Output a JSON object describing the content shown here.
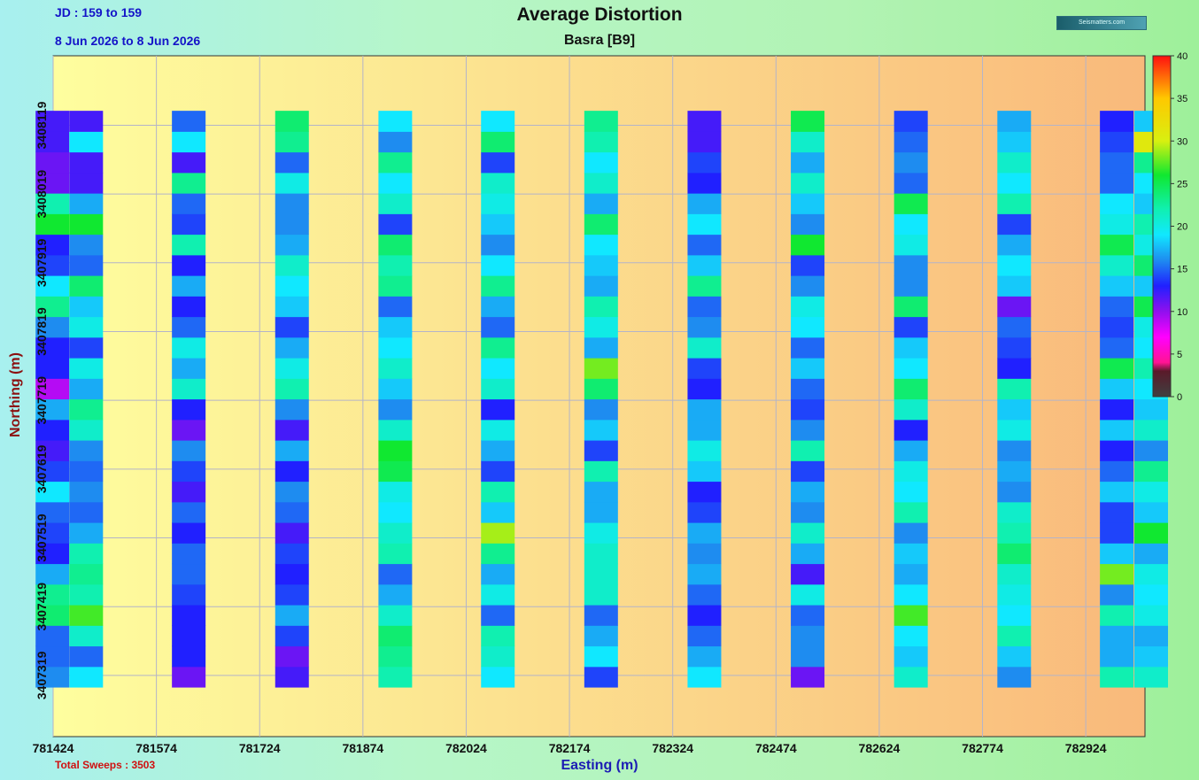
{
  "header": {
    "title": "Average Distortion",
    "subtitle": "Basra  [B9]",
    "jd": "JD : 159 to 159",
    "date_range": "8 Jun 2026 to 8 Jun 2026",
    "logo_text": "Seismatters.com"
  },
  "footer": {
    "total_sweeps": "Total Sweeps : 3503"
  },
  "chart_data": {
    "type": "heatmap",
    "title": "Average Distortion",
    "subtitle": "Basra  [B9]",
    "xlabel": "Easting (m)",
    "ylabel": "Northing (m)",
    "xlim": [
      781424,
      783010
    ],
    "ylim": [
      3407230,
      3408220
    ],
    "x_ticks": [
      781424,
      781574,
      781724,
      781874,
      782024,
      782174,
      782324,
      782474,
      782624,
      782774,
      782924
    ],
    "y_ticks": [
      3407319,
      3407419,
      3407519,
      3407619,
      3407719,
      3407819,
      3407919,
      3408019,
      3408119
    ],
    "grid": true,
    "colorbar": {
      "min": 0,
      "max": 40,
      "ticks": [
        0,
        5,
        10,
        15,
        20,
        25,
        30,
        35,
        40
      ],
      "label": ""
    },
    "swath": {
      "y_start": 3407302,
      "y_end": 3408140
    },
    "lines": [
      {
        "easting": 781423,
        "values": [
          16,
          15,
          15,
          24,
          23,
          17,
          13,
          14,
          15,
          19,
          14,
          12,
          13,
          17,
          9,
          13,
          13,
          16,
          23,
          19,
          14,
          13,
          26,
          22,
          11,
          11,
          12,
          12
        ]
      },
      {
        "easting": 781472,
        "values": [
          19,
          15,
          21,
          27,
          22,
          23,
          22,
          17,
          15,
          16,
          15,
          16,
          21,
          23,
          17,
          20,
          14,
          20,
          18,
          24,
          15,
          16,
          26,
          17,
          12,
          12,
          19,
          12
        ]
      },
      {
        "easting": 781621,
        "values": [
          11,
          13,
          13,
          13,
          14,
          15,
          15,
          13,
          15,
          12,
          14,
          16,
          11,
          13,
          21,
          17,
          20,
          15,
          13,
          17,
          13,
          22,
          14,
          15,
          23,
          12,
          19,
          15
        ]
      },
      {
        "easting": 781771,
        "values": [
          12,
          11,
          14,
          17,
          14,
          13,
          14,
          12,
          15,
          16,
          13,
          17,
          12,
          16,
          22,
          20,
          17,
          14,
          18,
          19,
          21,
          17,
          16,
          16,
          20,
          15,
          23,
          24
        ]
      },
      {
        "easting": 781921,
        "values": [
          22,
          23,
          24,
          21,
          17,
          15,
          22,
          21,
          19,
          20,
          25,
          26,
          21,
          16,
          18,
          21,
          19,
          18,
          15,
          23,
          22,
          24,
          14,
          21,
          19,
          23,
          16,
          19
        ]
      },
      {
        "easting": 782070,
        "values": [
          19,
          21,
          22,
          15,
          20,
          17,
          23,
          29,
          18,
          22,
          14,
          17,
          20,
          13,
          21,
          19,
          23,
          15,
          17,
          23,
          19,
          16,
          18,
          20,
          21,
          14,
          24,
          19
        ]
      },
      {
        "easting": 782220,
        "values": [
          14,
          19,
          17,
          15,
          21,
          21,
          21,
          20,
          17,
          17,
          22,
          14,
          18,
          16,
          24,
          28,
          17,
          20,
          22,
          17,
          18,
          19,
          24,
          17,
          21,
          19,
          22,
          23
        ]
      },
      {
        "easting": 782370,
        "values": [
          19,
          17,
          15,
          13,
          15,
          17,
          16,
          17,
          14,
          13,
          18,
          20,
          17,
          17,
          13,
          14,
          21,
          16,
          15,
          23,
          18,
          15,
          19,
          17,
          13,
          14,
          12,
          12
        ]
      },
      {
        "easting": 782520,
        "values": [
          11,
          16,
          16,
          15,
          20,
          12,
          17,
          21,
          16,
          17,
          14,
          22,
          16,
          14,
          15,
          18,
          15,
          19,
          20,
          16,
          14,
          26,
          16,
          18,
          21,
          17,
          21,
          25
        ]
      },
      {
        "easting": 782670,
        "values": [
          21,
          18,
          19,
          27,
          19,
          17,
          18,
          16,
          22,
          19,
          20,
          17,
          13,
          21,
          24,
          19,
          18,
          14,
          24,
          16,
          16,
          20,
          19,
          25,
          15,
          16,
          15,
          14
        ]
      },
      {
        "easting": 782820,
        "values": [
          16,
          18,
          22,
          19,
          20,
          21,
          24,
          22,
          21,
          16,
          17,
          16,
          20,
          18,
          22,
          13,
          14,
          15,
          11,
          18,
          19,
          17,
          14,
          22,
          19,
          21,
          18,
          17
        ]
      },
      {
        "easting": 782969,
        "values": [
          22,
          17,
          17,
          22,
          16,
          28,
          18,
          14,
          14,
          18,
          15,
          13,
          18,
          13,
          18,
          25,
          15,
          14,
          15,
          18,
          21,
          25,
          20,
          19,
          15,
          15,
          14,
          13
        ]
      },
      {
        "easting": 783019,
        "values": [
          21,
          18,
          17,
          20,
          19,
          20,
          17,
          26,
          18,
          20,
          23,
          16,
          21,
          18,
          19,
          22,
          19,
          20,
          25,
          18,
          24,
          20,
          22,
          18,
          19,
          23,
          31,
          18
        ]
      }
    ]
  },
  "colors": {
    "plot_bg_left": "#fefe9e",
    "plot_bg_right": "#f9b97b",
    "grid": "#b4b4c8",
    "axis": "#333333"
  }
}
